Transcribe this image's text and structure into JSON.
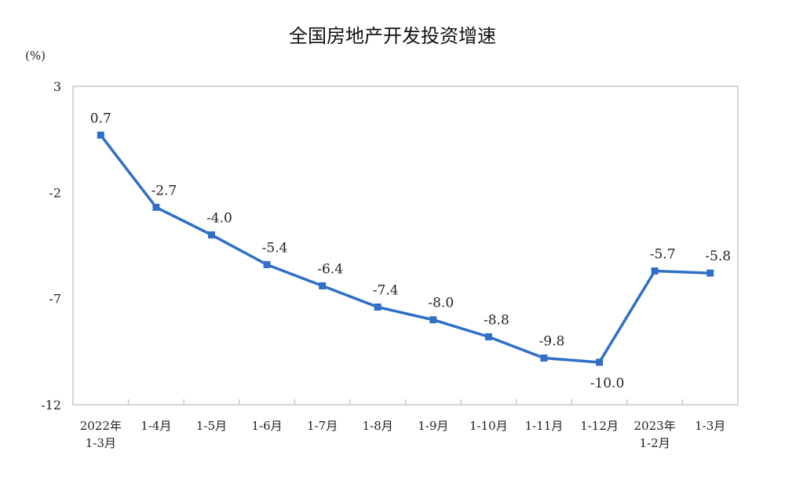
{
  "chart_data": {
    "type": "line",
    "title": "全国房地产开发投资增速",
    "ylabel": "(%)",
    "xlabel": "",
    "categories": [
      [
        "2022年",
        "1-3月"
      ],
      [
        "1-4月"
      ],
      [
        "1-5月"
      ],
      [
        "1-6月"
      ],
      [
        "1-7月"
      ],
      [
        "1-8月"
      ],
      [
        "1-9月"
      ],
      [
        "1-10月"
      ],
      [
        "1-11月"
      ],
      [
        "1-12月"
      ],
      [
        "2023年",
        "1-2月"
      ],
      [
        "1-3月"
      ]
    ],
    "series": [
      {
        "name": "全国房地产开发投资增速",
        "values": [
          0.7,
          -2.7,
          -4.0,
          -5.4,
          -6.4,
          -7.4,
          -8.0,
          -8.8,
          -9.8,
          -10.0,
          -5.7,
          -5.8
        ],
        "color": "#2f6fc6"
      }
    ],
    "data_labels": [
      "0.7",
      "-2.7",
      "-4.0",
      "-5.4",
      "-6.4",
      "-7.4",
      "-8.0",
      "-8.8",
      "-9.8",
      "-10.0",
      "-5.7",
      "-5.8"
    ],
    "ylim": [
      -12,
      3
    ],
    "yticks": [
      3,
      -2,
      -7,
      -12
    ],
    "grid": false
  }
}
